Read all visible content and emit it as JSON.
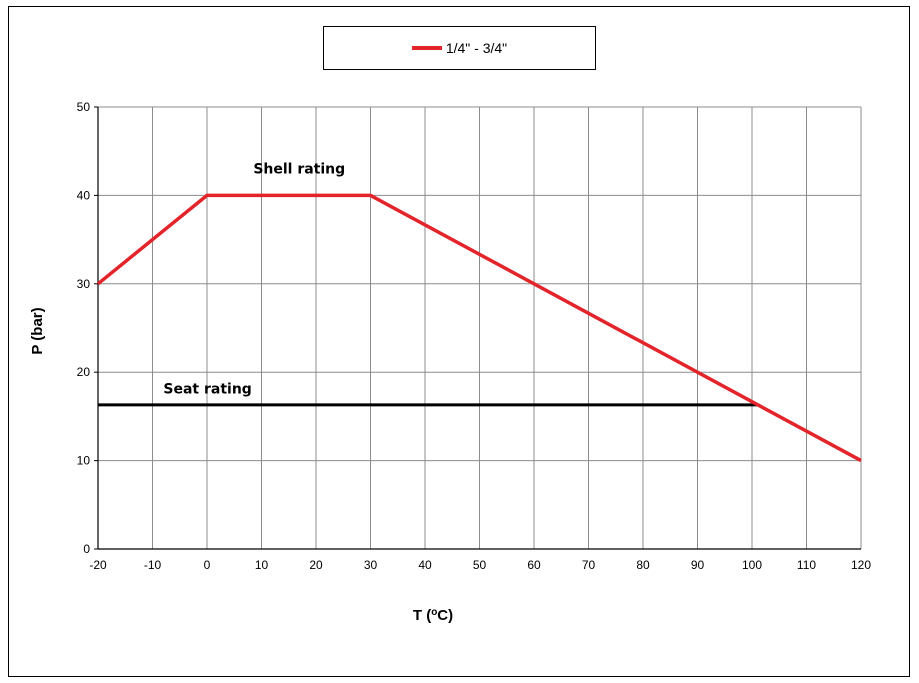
{
  "chart_data": {
    "type": "line",
    "xlabel": "T (",
    "xlabel_deg": "o",
    "xlabel_unit": "C)",
    "ylabel": "P (bar)",
    "xlim": [
      -20,
      120
    ],
    "ylim": [
      0,
      50
    ],
    "x_ticks": [
      -20,
      -10,
      0,
      10,
      20,
      30,
      40,
      50,
      60,
      70,
      80,
      90,
      100,
      110,
      120
    ],
    "y_ticks": [
      0,
      10,
      20,
      30,
      40,
      50
    ],
    "grid": true,
    "legend_position": "top-center",
    "series": [
      {
        "name": "1/4\" - 3/4\"",
        "color": "#e3242b",
        "points": [
          [
            -20,
            30
          ],
          [
            0,
            40
          ],
          [
            30,
            40
          ],
          [
            120,
            10
          ]
        ]
      },
      {
        "color": "#000000",
        "points": [
          [
            -20,
            16.3
          ],
          [
            101,
            16.3
          ]
        ]
      }
    ],
    "annotations": [
      {
        "text": "Shell rating",
        "x": 8.5,
        "y": 42.5
      },
      {
        "text": "Seat rating",
        "x": -8,
        "y": 17.6
      }
    ]
  }
}
